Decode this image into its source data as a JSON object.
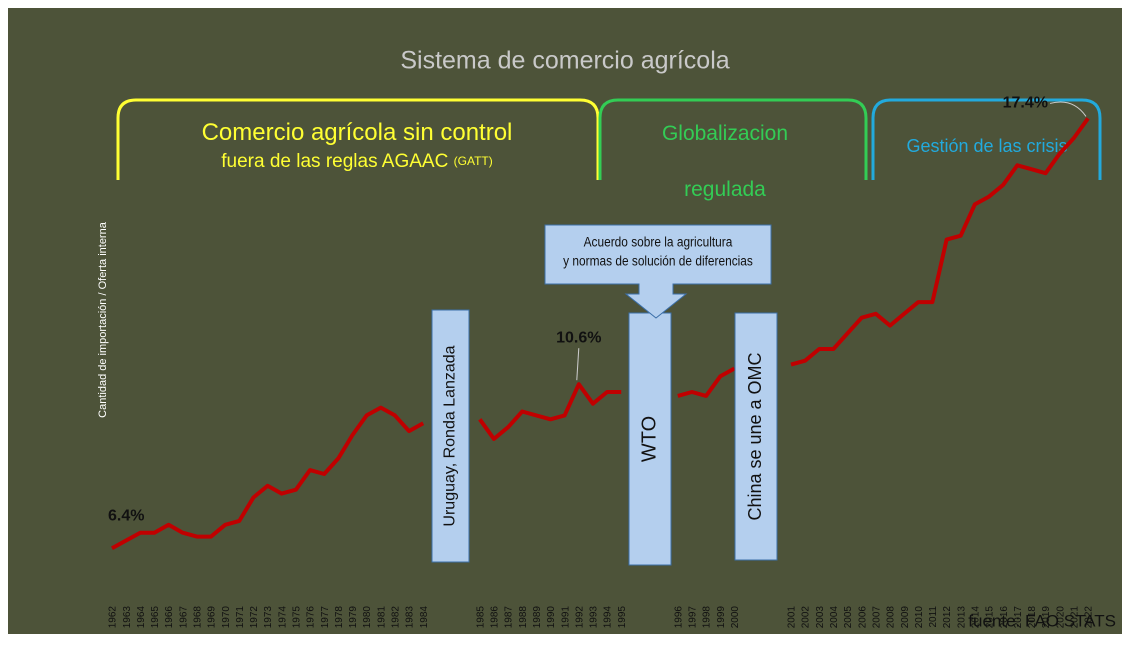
{
  "chart_data": {
    "type": "line",
    "title": "Sistema de comercio agrícola",
    "ylabel": "Cantidad de importación / Oferta interna",
    "source": "fuente: FAO STATS",
    "periods": [
      {
        "lines": [
          "Comercio agrícola sin control",
          "fuera de las reglas AGAAC"
        ],
        "note": "(GATT)",
        "color": "#ffff33"
      },
      {
        "lines": [
          "Globalizacion",
          "regulada"
        ],
        "color": "#33cc55"
      },
      {
        "lines": [
          "Gestión de las crisis"
        ],
        "color": "#22aadd"
      }
    ],
    "events": [
      "Uruguay, Ronda Lanzada",
      "WTO",
      "China se une a OMC"
    ],
    "callout": [
      "Acuerdo sobre la agricultura",
      "y normas de solución de diferencias"
    ],
    "categories": [
      "1962",
      "1963",
      "1964",
      "1965",
      "1966",
      "1967",
      "1968",
      "1969",
      "1970",
      "1971",
      "1972",
      "1973",
      "1974",
      "1975",
      "1976",
      "1977",
      "1978",
      "1979",
      "1980",
      "1981",
      "1982",
      "1983",
      "1984",
      null,
      null,
      null,
      "1985",
      "1986",
      "1987",
      "1988",
      "1989",
      "1990",
      "1991",
      "1992",
      "1993",
      "1994",
      "1995",
      null,
      null,
      null,
      "1996",
      "1997",
      "1998",
      "1999",
      "2000",
      null,
      null,
      null,
      "2001",
      "2002",
      "2003",
      "2004",
      "2005",
      "2006",
      "2007",
      "2008",
      "2009",
      "2010",
      "2011",
      "2012",
      "2013",
      "2014",
      "2015",
      "2016",
      "2017",
      "2018",
      "2019",
      "2020",
      "2021",
      "2022"
    ],
    "series": [
      {
        "name": "Cantidad de importación / Oferta interna",
        "color": "#c00000",
        "values": [
          6.4,
          6.6,
          6.8,
          6.8,
          7.0,
          6.8,
          6.7,
          6.7,
          7.0,
          7.1,
          7.7,
          8.0,
          7.8,
          7.9,
          8.4,
          8.3,
          8.7,
          9.3,
          9.8,
          10.0,
          9.8,
          9.4,
          9.6,
          null,
          null,
          null,
          9.7,
          9.2,
          9.5,
          9.9,
          9.8,
          9.7,
          9.8,
          10.6,
          10.1,
          10.4,
          10.4,
          null,
          null,
          null,
          10.3,
          10.4,
          10.3,
          10.8,
          11.0,
          null,
          null,
          null,
          11.1,
          11.2,
          11.5,
          11.5,
          11.9,
          12.3,
          12.4,
          12.1,
          12.4,
          12.7,
          12.7,
          14.3,
          14.4,
          15.2,
          15.4,
          15.7,
          16.2,
          16.1,
          16.0,
          16.5,
          16.9,
          17.4
        ],
        "value_labels": [
          "6.4%",
          null,
          null,
          null,
          null,
          null,
          null,
          null,
          null,
          null,
          null,
          null,
          null,
          null,
          null,
          null,
          null,
          null,
          null,
          null,
          null,
          null,
          null,
          null,
          null,
          null,
          null,
          null,
          null,
          null,
          null,
          null,
          null,
          "10.6%",
          null,
          null,
          null,
          null,
          null,
          null,
          null,
          null,
          null,
          null,
          null,
          null,
          null,
          null,
          null,
          null,
          null,
          null,
          null,
          null,
          null,
          null,
          null,
          null,
          null,
          null,
          null,
          null,
          null,
          null,
          null,
          null,
          null,
          null,
          null,
          "17.4%"
        ]
      }
    ],
    "ylim": [
      5,
      18
    ]
  }
}
